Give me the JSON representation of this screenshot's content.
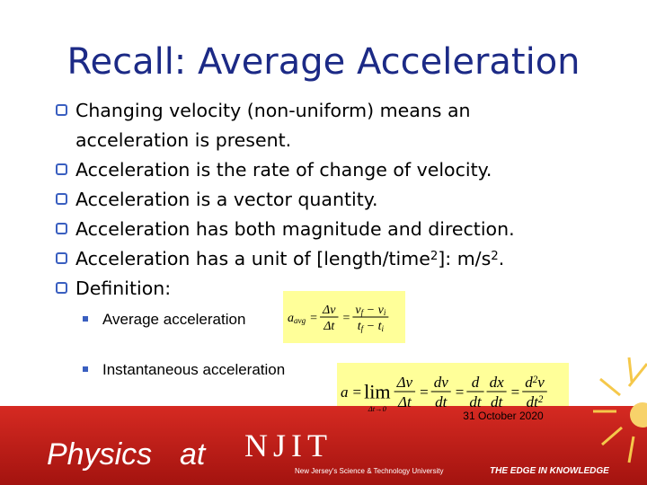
{
  "title": "Recall: Average Acceleration",
  "bullets": [
    [
      [
        {
          "text": "Changing velocity (non-uniform) means an"
        }
      ],
      [
        {
          "text": "acceleration is present."
        }
      ]
    ],
    [
      [
        {
          "text": "Acceleration is the rate of change of velocity."
        }
      ]
    ],
    [
      [
        {
          "text": "Acceleration is a vector quantity."
        }
      ]
    ],
    [
      [
        {
          "text": "Acceleration has both magnitude and direction."
        }
      ]
    ],
    [
      [
        {
          "text": "Acceleration has a unit of [length/time",
          "sup": "2"
        },
        {
          "text": "]: m/s",
          "sup": "2"
        },
        {
          "text": "."
        }
      ]
    ],
    [
      [
        {
          "text": "Definition:"
        }
      ]
    ]
  ],
  "sub_bullets": [
    "Average acceleration",
    "Instantaneous acceleration"
  ],
  "formulas": [
    [
      {
        "text": "a",
        "sub": "avg"
      },
      {
        "op": "="
      },
      {
        "num": [
          {
            "text": "Δv"
          }
        ],
        "den": [
          {
            "text": "Δt"
          }
        ]
      },
      {
        "op": "="
      },
      {
        "num": [
          {
            "text": "v",
            "sub": "f"
          },
          {
            "text": " − v",
            "sub": "i"
          }
        ],
        "den": [
          {
            "text": "t",
            "sub": "f"
          },
          {
            "text": " − t",
            "sub": "i"
          }
        ]
      }
    ],
    [
      {
        "text": "a"
      },
      {
        "op": "="
      },
      {
        "lim": "lim",
        "under": "Δt→0"
      },
      {
        "num": [
          {
            "text": "Δv"
          }
        ],
        "den": [
          {
            "text": "Δt"
          }
        ]
      },
      {
        "op": "="
      },
      {
        "num": [
          {
            "text": "dv"
          }
        ],
        "den": [
          {
            "text": "dt"
          }
        ]
      },
      {
        "op": "="
      },
      {
        "num": [
          {
            "text": "d"
          }
        ],
        "den": [
          {
            "text": "dt"
          }
        ]
      },
      {
        "num": [
          {
            "text": "dx"
          }
        ],
        "den": [
          {
            "text": "dt"
          }
        ]
      },
      {
        "op": "="
      },
      {
        "num": [
          {
            "text": "d",
            "sup": "2"
          },
          {
            "text": "v"
          }
        ],
        "den": [
          {
            "text": "dt",
            "sup": "2"
          }
        ]
      }
    ]
  ],
  "footer": {
    "date": "31 October 2020",
    "brand_left": "Physics",
    "brand_mid": "at",
    "brand_right": "NJIT",
    "university": "New Jersey's Science & Technology University",
    "tagline": "THE EDGE IN KNOWLEDGE"
  }
}
